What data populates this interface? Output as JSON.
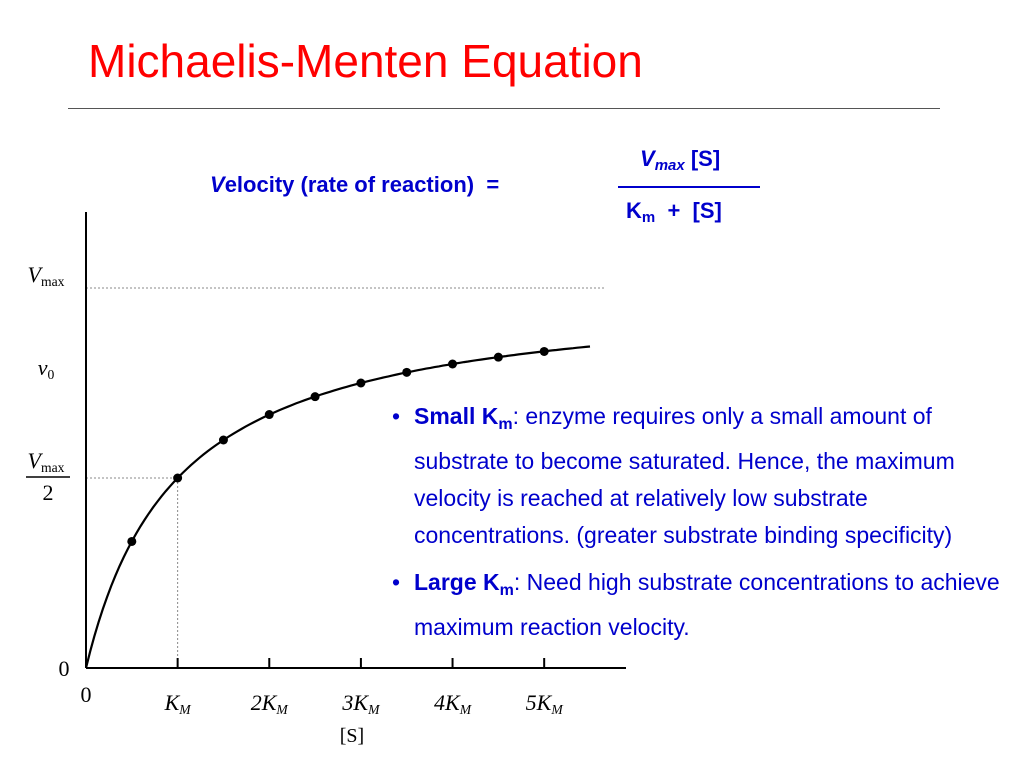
{
  "slide": {
    "title": "Michaelis-Menten Equation"
  },
  "equation": {
    "lhs_italic": "V",
    "lhs_rest": "elocity (rate of reaction)",
    "equals": "=",
    "numerator_v": "V",
    "numerator_sub": "max",
    "numerator_rest": " [S]",
    "denominator_k": "K",
    "denominator_sub": "m",
    "denominator_rest": "  +  [S]"
  },
  "notes": [
    {
      "bullet": "•",
      "term": "Small K",
      "term_sub": "m",
      "colon": ":",
      "text": "  enzyme requires only a small amount of substrate to become saturated. Hence, the maximum velocity is reached at relatively low substrate concentrations. (greater substrate binding specificity)"
    },
    {
      "bullet": "•",
      "term": "Large K",
      "term_sub": "m",
      "colon": ":",
      "text": "  Need high substrate concentrations to achieve maximum reaction velocity."
    }
  ],
  "chart_data": {
    "type": "line",
    "x_unit": "K_M",
    "xlim": [
      0,
      5.5
    ],
    "ylim": [
      0,
      1.1
    ],
    "y_unit": "Vmax",
    "x_ticks": [
      {
        "value": 0,
        "label": "0"
      },
      {
        "value": 1,
        "label": "K",
        "sub": "M"
      },
      {
        "value": 2,
        "label": "2K",
        "sub": "M"
      },
      {
        "value": 3,
        "label": "3K",
        "sub": "M"
      },
      {
        "value": 4,
        "label": "4K",
        "sub": "M"
      },
      {
        "value": 5,
        "label": "5K",
        "sub": "M"
      }
    ],
    "y_labels": {
      "zero": "0",
      "vmax_main": "V",
      "vmax_sub": "max",
      "v0_main": "v",
      "v0_sub": "0",
      "half_num_main": "V",
      "half_num_sub": "max",
      "half_den": "2"
    },
    "xlabel": "[S]",
    "reference_lines": {
      "vmax": 1.0,
      "half_vmax": 0.5,
      "km": 1
    },
    "curve": {
      "equation": "v = Vmax*S/(Km+S)",
      "x_max": 5.5
    },
    "points": [
      {
        "x": 0.5,
        "y": 0.333
      },
      {
        "x": 1.0,
        "y": 0.5
      },
      {
        "x": 1.5,
        "y": 0.6
      },
      {
        "x": 2.0,
        "y": 0.667
      },
      {
        "x": 2.5,
        "y": 0.714
      },
      {
        "x": 3.0,
        "y": 0.75
      },
      {
        "x": 3.5,
        "y": 0.778
      },
      {
        "x": 4.0,
        "y": 0.8
      },
      {
        "x": 4.5,
        "y": 0.818
      },
      {
        "x": 5.0,
        "y": 0.833
      }
    ],
    "colors": {
      "axis": "#000000",
      "curve": "#000000",
      "points": "#000000",
      "reference": "#888888"
    }
  }
}
